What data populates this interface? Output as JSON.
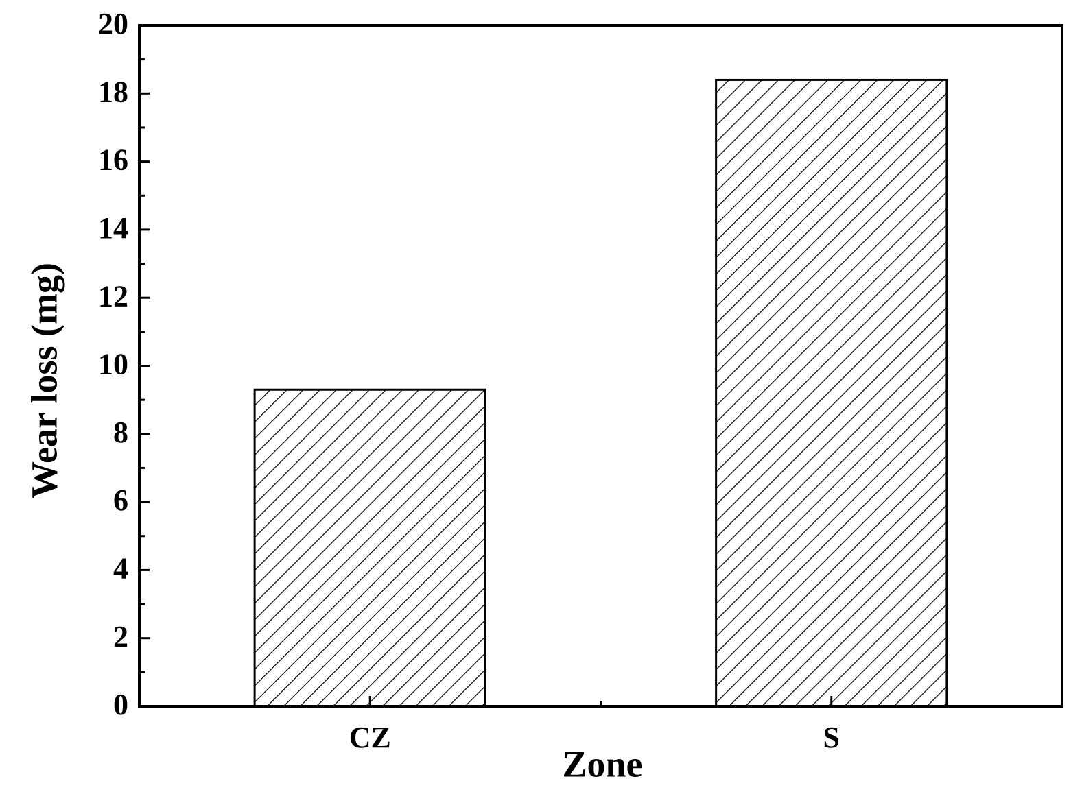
{
  "chart_data": {
    "type": "bar",
    "x_label": "Zone",
    "y_label": "Wear loss (mg)",
    "categories": [
      "CZ",
      "S"
    ],
    "values": [
      9.3,
      18.4
    ],
    "color": "#000000",
    "ylim": [
      0,
      20
    ],
    "yticks": [
      0,
      2,
      4,
      6,
      8,
      10,
      12,
      14,
      16,
      18,
      20
    ],
    "grid": false
  }
}
